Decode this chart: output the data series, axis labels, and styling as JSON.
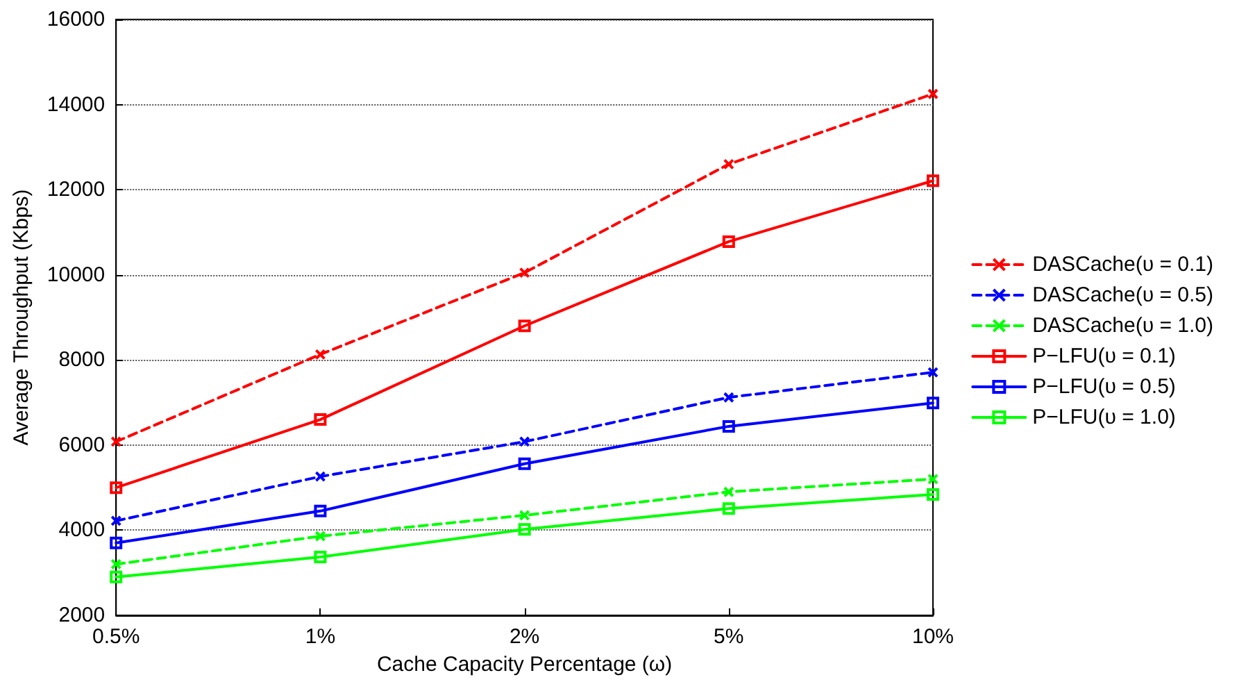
{
  "chart_data": {
    "type": "line",
    "xlabel": "Cache Capacity Percentage (ω)",
    "ylabel": "Average Throughput (Kbps)",
    "categories": [
      "0.5%",
      "1%",
      "2%",
      "5%",
      "10%"
    ],
    "ylim": [
      2000,
      16000
    ],
    "yticks": [
      2000,
      4000,
      6000,
      8000,
      10000,
      12000,
      14000,
      16000
    ],
    "grid": "y",
    "legend": "right",
    "series": [
      {
        "name": "DASCache(υ = 0.1)",
        "color": "#ff0000",
        "marker": "cross",
        "line_style": "dashed",
        "values": [
          6080,
          8130,
          10050,
          12600,
          14250
        ]
      },
      {
        "name": "DASCache(υ = 0.5)",
        "color": "#0000ff",
        "marker": "cross",
        "line_style": "dashed",
        "values": [
          4220,
          5260,
          6080,
          7120,
          7710
        ]
      },
      {
        "name": "DASCache(υ = 1.0)",
        "color": "#00ff00",
        "marker": "cross",
        "line_style": "dashed",
        "values": [
          3200,
          3860,
          4350,
          4900,
          5200
        ]
      },
      {
        "name": "P−LFU(υ = 0.1)",
        "color": "#ff0000",
        "marker": "square",
        "line_style": "solid",
        "values": [
          5000,
          6600,
          8800,
          10780,
          12210
        ]
      },
      {
        "name": "P−LFU(υ = 0.5)",
        "color": "#0000ff",
        "marker": "square",
        "line_style": "solid",
        "values": [
          3700,
          4450,
          5560,
          6440,
          6990
        ]
      },
      {
        "name": "P−LFU(υ = 1.0)",
        "color": "#00ff00",
        "marker": "square",
        "line_style": "solid",
        "values": [
          2900,
          3370,
          4020,
          4510,
          4840
        ]
      }
    ]
  }
}
